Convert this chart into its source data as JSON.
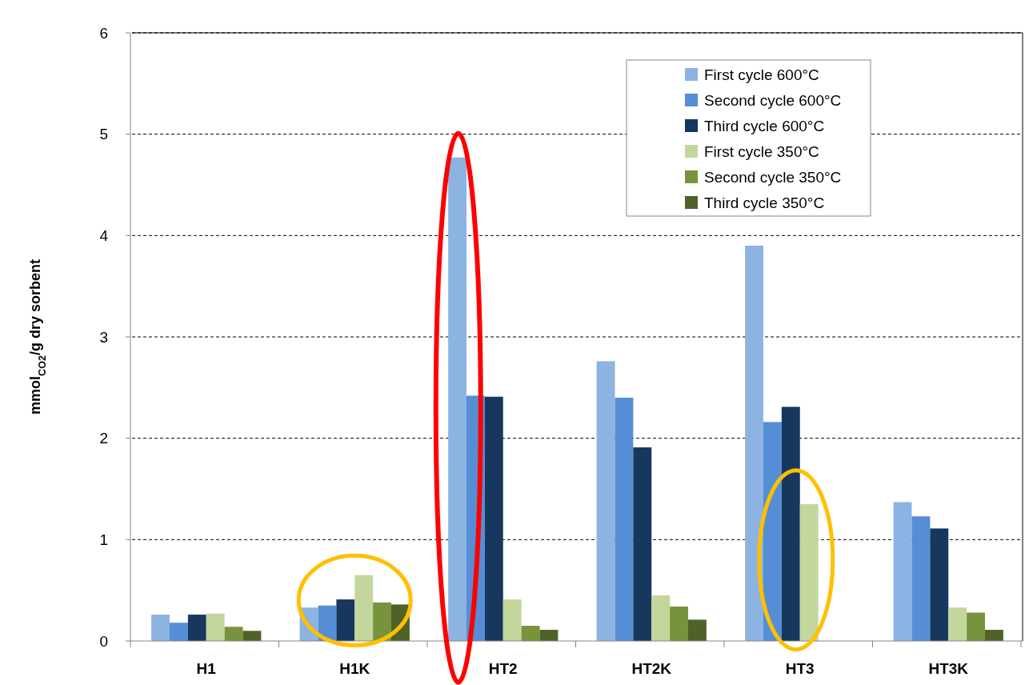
{
  "chart_data": {
    "type": "bar",
    "ylabel": "mmol$_{CO2}$/g dry sorbent",
    "categories": [
      "H1",
      "H1K",
      "HT2",
      "HT2K",
      "HT3",
      "HT3K"
    ],
    "series": [
      {
        "name": "First cycle 600°C",
        "color": "#8db3e2",
        "values": [
          0.26,
          0.33,
          4.77,
          2.76,
          3.9,
          1.37
        ]
      },
      {
        "name": "Second cycle 600°C",
        "color": "#558ed5",
        "values": [
          0.18,
          0.35,
          2.42,
          2.4,
          2.16,
          1.23
        ]
      },
      {
        "name": "Third cycle 600°C",
        "color": "#17375e",
        "values": [
          0.26,
          0.41,
          2.41,
          1.91,
          2.31,
          1.11
        ]
      },
      {
        "name": "First cycle 350°C",
        "color": "#c3d69b",
        "values": [
          0.27,
          0.65,
          0.41,
          0.45,
          1.35,
          0.33
        ]
      },
      {
        "name": "Second cycle 350°C",
        "color": "#77933c",
        "values": [
          0.14,
          0.38,
          0.15,
          0.34,
          null,
          0.28
        ]
      },
      {
        "name": "Third cycle 350°C",
        "color": "#4f6228",
        "values": [
          0.1,
          0.36,
          0.11,
          0.21,
          null,
          0.11
        ]
      }
    ],
    "ylim": [
      0,
      6
    ],
    "yticks": [
      0,
      1,
      2,
      3,
      4,
      5,
      6
    ],
    "grid": "y",
    "legend": "top right"
  }
}
